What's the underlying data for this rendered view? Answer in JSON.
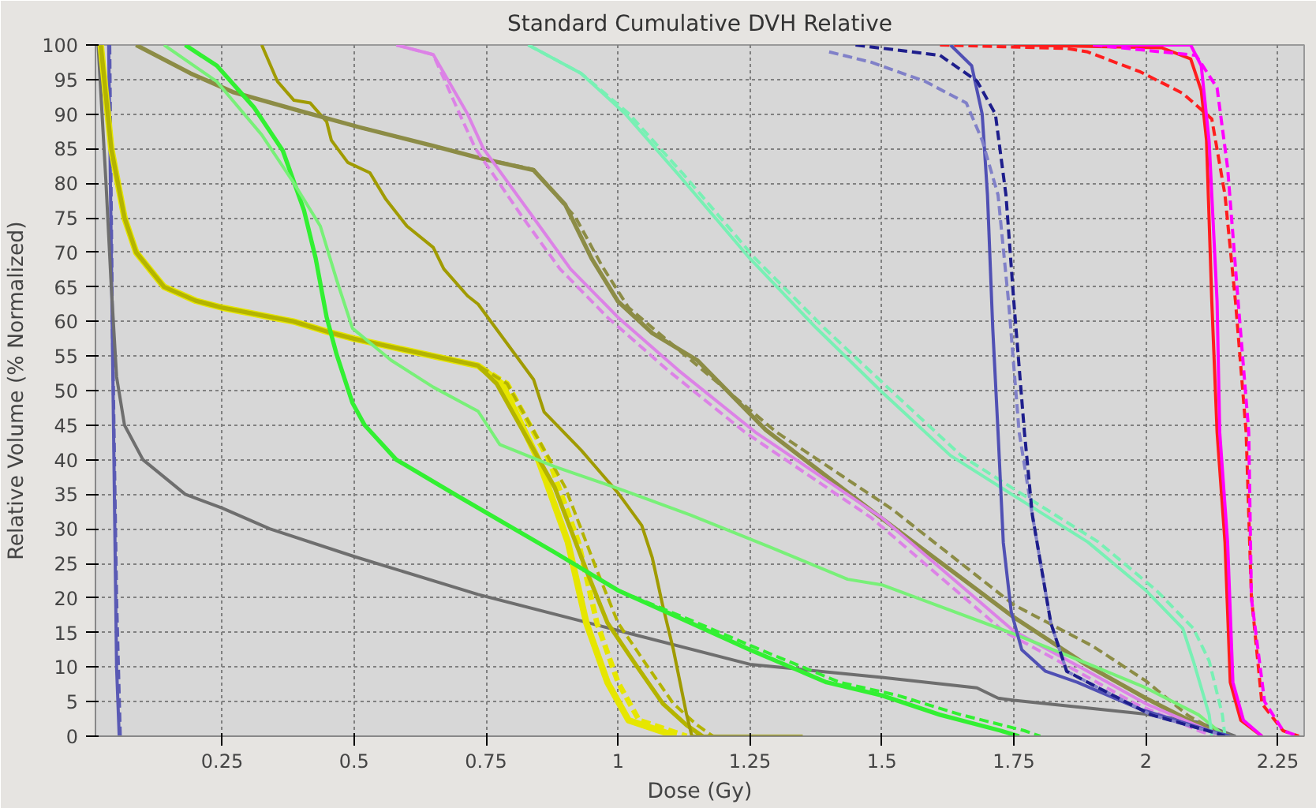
{
  "chart_data": {
    "type": "line",
    "title": "Standard Cumulative DVH Relative",
    "xlabel": "Dose (Gy)",
    "ylabel": "Relative Volume (% Normalized)",
    "xlim": [
      0.01,
      2.3
    ],
    "ylim": [
      0,
      100
    ],
    "xticks": [
      0.25,
      0.5,
      0.75,
      1,
      1.25,
      1.5,
      1.75,
      2,
      2.25
    ],
    "yticks": [
      0,
      5,
      10,
      15,
      20,
      25,
      30,
      35,
      40,
      45,
      50,
      55,
      60,
      65,
      70,
      75,
      80,
      85,
      90,
      95,
      100
    ],
    "grid": true,
    "series": [
      {
        "color": "#5a5ab4",
        "line_style": "solid",
        "x": [
          0.035,
          0.04,
          0.045,
          0.05,
          0.055
        ],
        "values": [
          100,
          70,
          40,
          10,
          0
        ]
      },
      {
        "color": "#5a5ab4",
        "line_style": "dashed",
        "x": [
          0.037,
          0.042,
          0.05,
          0.057
        ],
        "values": [
          100,
          60,
          20,
          0
        ]
      },
      {
        "color": "#6e6e6e",
        "line_style": "solid",
        "x": [
          0.015,
          0.03,
          0.04,
          0.05,
          0.065,
          0.1,
          0.18,
          0.25,
          0.34,
          0.5,
          0.735,
          1.0,
          1.25,
          1.5,
          1.68,
          1.72,
          1.75,
          2.0,
          2.1,
          2.17
        ],
        "values": [
          100,
          80,
          65,
          52,
          45,
          40,
          35,
          33,
          30,
          26,
          20.5,
          15.3,
          10.4,
          8.5,
          7,
          5.5,
          5.2,
          3.2,
          2,
          0
        ]
      },
      {
        "color": "#e6e600",
        "line_style": "solid",
        "x": [
          0.02,
          0.04,
          0.065,
          0.087,
          0.14,
          0.2,
          0.25,
          0.385,
          0.45,
          0.5,
          0.65,
          0.735,
          0.78,
          0.85,
          0.905,
          0.94,
          0.98,
          1.02,
          1.11
        ],
        "values": [
          100,
          85,
          75,
          70,
          65,
          63,
          62,
          60,
          58.5,
          57.5,
          55,
          53.6,
          51,
          39.8,
          28.1,
          16.4,
          7.8,
          2.3,
          0
        ]
      },
      {
        "color": "#e6e600",
        "line_style": "dashed",
        "x": [
          0.02,
          0.04,
          0.065,
          0.087,
          0.14,
          0.2,
          0.25,
          0.385,
          0.45,
          0.5,
          0.65,
          0.735,
          0.79,
          0.87,
          0.925,
          0.96,
          1.0,
          1.04,
          1.13
        ],
        "values": [
          100,
          85,
          75,
          70,
          65,
          63,
          62,
          60,
          58.5,
          57.5,
          55,
          53.6,
          51,
          39.8,
          28.1,
          16.4,
          7.8,
          2.3,
          0
        ]
      },
      {
        "color": "#b4b400",
        "line_style": "solid",
        "x": [
          0.02,
          0.04,
          0.065,
          0.087,
          0.14,
          0.2,
          0.25,
          0.385,
          0.45,
          0.5,
          0.65,
          0.735,
          0.77,
          0.88,
          0.94,
          0.98,
          1.035,
          1.085,
          1.13,
          1.16
        ],
        "values": [
          100,
          85,
          75,
          70,
          65,
          63,
          62,
          60,
          58.5,
          57.5,
          55,
          53.6,
          51,
          36,
          24,
          16.4,
          10.2,
          4.7,
          1.6,
          0
        ]
      },
      {
        "color": "#b4b400",
        "line_style": "dashed",
        "x": [
          0.02,
          0.04,
          0.065,
          0.087,
          0.14,
          0.2,
          0.25,
          0.385,
          0.45,
          0.5,
          0.65,
          0.735,
          0.79,
          0.9,
          0.96,
          1.0,
          1.055,
          1.105,
          1.15,
          1.18
        ],
        "values": [
          100,
          85,
          75,
          70,
          65,
          63,
          62,
          60,
          58.5,
          57.5,
          55,
          53.6,
          51,
          36,
          24,
          16.4,
          10.2,
          4.7,
          1.6,
          0
        ]
      },
      {
        "color": "#a09b00",
        "line_style": "solid",
        "x": [
          0.325,
          0.355,
          0.386,
          0.417,
          0.448,
          0.457,
          0.488,
          0.53,
          0.56,
          0.6,
          0.65,
          0.67,
          0.715,
          0.735,
          0.84,
          0.86,
          0.93,
          1.0,
          1.045,
          1.065,
          1.085,
          1.105,
          1.13,
          1.14,
          1.35
        ],
        "values": [
          100,
          94.7,
          92,
          91.6,
          88.9,
          86.2,
          83,
          81.5,
          77.7,
          73.8,
          70.7,
          67.6,
          63.7,
          62.5,
          51.6,
          46.9,
          41.4,
          35.2,
          30.5,
          25.8,
          18.8,
          12.5,
          3.1,
          0,
          0
        ]
      },
      {
        "color": "#8c8c46",
        "line_style": "solid",
        "x": [
          0.087,
          0.19,
          0.27,
          0.395,
          0.51,
          0.65,
          0.735,
          0.84,
          0.9,
          0.95,
          1.0,
          1.065,
          1.15,
          1.28,
          1.5,
          1.75,
          1.89,
          2.0,
          2.1,
          2.16
        ],
        "values": [
          100,
          95.9,
          93.2,
          90.5,
          88.1,
          85.4,
          83.7,
          81.9,
          76.9,
          69.1,
          62.9,
          58.3,
          54.4,
          44.3,
          31.5,
          17.2,
          10.2,
          5.5,
          1.6,
          0
        ]
      },
      {
        "color": "#8c8c46",
        "line_style": "dashed",
        "x": [
          0.087,
          0.19,
          0.27,
          0.395,
          0.51,
          0.65,
          0.735,
          0.84,
          0.92,
          0.97,
          1.02,
          1.3,
          1.52,
          1.75,
          1.9,
          2.0,
          2.08,
          2.15
        ],
        "values": [
          100,
          95.9,
          93.2,
          90.5,
          88.1,
          85.4,
          83.7,
          82,
          75,
          68,
          62,
          44,
          32.8,
          19,
          13,
          8,
          3,
          0
        ]
      },
      {
        "color": "#dc82e6",
        "line_style": "solid",
        "x": [
          0.58,
          0.65,
          0.715,
          0.745,
          0.84,
          0.91,
          1.0,
          1.115,
          1.26,
          1.5,
          1.75,
          1.89,
          2.0,
          2.12,
          2.15
        ],
        "values": [
          100,
          98.6,
          90,
          85,
          75,
          67.6,
          60.6,
          52.9,
          44,
          31.6,
          15.2,
          9.4,
          4.7,
          0.8,
          0
        ]
      },
      {
        "color": "#dc82e6",
        "line_style": "dashed",
        "x": [
          0.58,
          0.65,
          0.7,
          0.73,
          0.82,
          0.89,
          0.98,
          1.095,
          1.24,
          1.48,
          1.73,
          1.87,
          1.98,
          2.1,
          2.13
        ],
        "values": [
          100,
          98.6,
          90,
          85,
          75,
          67.6,
          60.6,
          52.9,
          44,
          31.6,
          15.2,
          9.4,
          4.7,
          0.8,
          0
        ]
      },
      {
        "color": "#32f032",
        "line_style": "solid",
        "x": [
          0.18,
          0.24,
          0.31,
          0.365,
          0.405,
          0.427,
          0.448,
          0.467,
          0.497,
          0.52,
          0.58,
          0.695,
          0.776,
          0.88,
          1.0,
          1.137,
          1.25,
          1.395,
          1.5,
          1.61,
          1.725,
          1.76
        ],
        "values": [
          100,
          97,
          91,
          84.7,
          76.1,
          69.2,
          60.6,
          55.2,
          48.2,
          45,
          40,
          34.8,
          31.2,
          26.6,
          21.1,
          16.4,
          12.5,
          7.8,
          5.9,
          3.1,
          0.8,
          0
        ]
      },
      {
        "color": "#32f032",
        "line_style": "dashed",
        "x": [
          0.18,
          0.24,
          0.31,
          0.365,
          0.405,
          0.427,
          0.448,
          0.467,
          0.497,
          0.52,
          0.58,
          0.695,
          0.776,
          0.88,
          1.0,
          1.15,
          1.27,
          1.42,
          1.53,
          1.65,
          1.77,
          1.8
        ],
        "values": [
          100,
          97,
          91,
          84.7,
          76.1,
          69.2,
          60.6,
          55.2,
          48.2,
          45,
          40,
          34.8,
          31.2,
          26.6,
          21.1,
          16.4,
          12.5,
          7.8,
          5.9,
          3.1,
          0.8,
          0
        ]
      },
      {
        "color": "#78f078",
        "line_style": "solid",
        "x": [
          0.14,
          0.24,
          0.325,
          0.386,
          0.436,
          0.467,
          0.497,
          0.57,
          0.65,
          0.735,
          0.776,
          0.88,
          1.013,
          1.137,
          1.29,
          1.435,
          1.5,
          1.75,
          1.89,
          2.0,
          2.1,
          2.15
        ],
        "values": [
          100,
          94.7,
          87,
          80,
          73.8,
          66,
          59,
          54.4,
          50.5,
          47,
          42.2,
          39,
          35.5,
          32,
          27.3,
          22.7,
          21.9,
          14.8,
          10.5,
          7,
          3.1,
          0
        ]
      },
      {
        "color": "#78f0b4",
        "line_style": "solid",
        "x": [
          0.83,
          0.93,
          1.013,
          1.115,
          1.25,
          1.375,
          1.5,
          1.63,
          1.75,
          1.89,
          2.0,
          2.07,
          2.09,
          2.12,
          2.125
        ],
        "values": [
          100,
          95.9,
          90.1,
          81.2,
          69.1,
          59.1,
          49.8,
          40.6,
          34.8,
          28.1,
          21.1,
          15.6,
          10.9,
          3.1,
          0
        ]
      },
      {
        "color": "#78f0b4",
        "line_style": "dashed",
        "x": [
          0.83,
          0.93,
          1.02,
          1.125,
          1.26,
          1.39,
          1.52,
          1.65,
          1.77,
          1.91,
          2.02,
          2.09,
          2.12,
          2.145,
          2.15
        ],
        "values": [
          100,
          95.9,
          90.1,
          81.2,
          69.1,
          59.1,
          49.8,
          40.6,
          34.8,
          28.1,
          21.1,
          15.6,
          10.9,
          3.1,
          0
        ]
      },
      {
        "color": "#5050b4",
        "line_style": "solid",
        "x": [
          1.63,
          1.67,
          1.69,
          1.7,
          1.71,
          1.72,
          1.73,
          1.745,
          1.765,
          1.81,
          1.87,
          1.99,
          2.12,
          2.16
        ],
        "values": [
          100,
          97,
          90,
          78.3,
          59,
          44,
          28,
          18,
          12.5,
          9.4,
          7.8,
          3.9,
          0.8,
          0
        ]
      },
      {
        "color": "#8080c8",
        "line_style": "dashed",
        "x": [
          1.4,
          1.48,
          1.58,
          1.66,
          1.69,
          1.72,
          1.74,
          1.76,
          1.785,
          1.82,
          1.85,
          1.91,
          2.01,
          2.135,
          2.15
        ],
        "values": [
          99,
          97.5,
          94.8,
          91.6,
          86.2,
          78.3,
          62.8,
          44,
          32,
          16.4,
          9.4,
          7,
          3.1,
          0.4,
          0
        ]
      },
      {
        "color": "#1e1e8c",
        "line_style": "dashed",
        "x": [
          1.45,
          1.61,
          1.68,
          1.715,
          1.735,
          1.75,
          1.77,
          1.785,
          1.82,
          1.85,
          1.91,
          2.01,
          2.135,
          2.15
        ],
        "values": [
          100,
          98.5,
          94.8,
          90,
          78.3,
          62.8,
          44,
          32,
          16.4,
          9.4,
          7,
          3.1,
          0.4,
          0
        ]
      },
      {
        "color": "#ff1e1e",
        "line_style": "solid",
        "x": [
          1.75,
          2.03,
          2.085,
          2.105,
          2.115,
          2.125,
          2.135,
          2.15,
          2.16,
          2.18,
          2.22
        ],
        "values": [
          100,
          99.6,
          98,
          93.4,
          86.2,
          62.9,
          44,
          28,
          7.8,
          2.3,
          0
        ]
      },
      {
        "color": "#ff1e1e",
        "line_style": "dashed",
        "x": [
          1.61,
          1.85,
          1.89,
          1.99,
          2.07,
          2.125,
          2.15,
          2.17,
          2.19,
          2.2,
          2.22,
          2.26,
          2.29
        ],
        "values": [
          100,
          99.5,
          99,
          96.1,
          93,
          89.3,
          78.3,
          62.8,
          44,
          20.3,
          4.7,
          0.8,
          0
        ]
      },
      {
        "color": "#ff00ff",
        "line_style": "solid",
        "x": [
          1.9,
          2.085,
          2.105,
          2.12,
          2.135,
          2.14,
          2.155,
          2.165,
          2.185,
          2.22
        ],
        "values": [
          100,
          100,
          97,
          86,
          62.9,
          44,
          28,
          7.8,
          2.3,
          0
        ]
      },
      {
        "color": "#ff00ff",
        "line_style": "dashed",
        "x": [
          1.9,
          2.095,
          2.135,
          2.155,
          2.175,
          2.195,
          2.2,
          2.225,
          2.26,
          2.29
        ],
        "values": [
          100,
          98.5,
          93.8,
          82.2,
          62.8,
          44,
          20,
          5,
          0.8,
          0
        ]
      }
    ]
  }
}
